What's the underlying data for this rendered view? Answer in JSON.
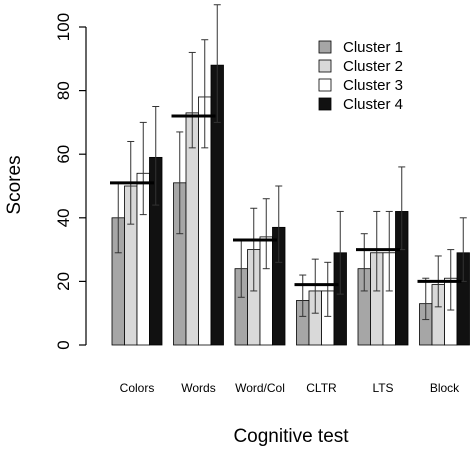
{
  "chart_data": {
    "type": "bar",
    "title": "",
    "xlabel": "Cognitive test",
    "ylabel": "Scores",
    "ylim": [
      0,
      100
    ],
    "yticks": [
      0,
      20,
      40,
      60,
      80,
      100
    ],
    "grid": false,
    "legend_position": "top-right",
    "categories": [
      "Colors",
      "Words",
      "Word/Col",
      "CLTR",
      "LTS",
      "Block"
    ],
    "reference_values": [
      51,
      72,
      33,
      19,
      30,
      20
    ],
    "series": [
      {
        "name": "Cluster 1",
        "color": "#a6a6a6",
        "values": [
          40,
          51,
          24,
          14,
          24,
          13
        ],
        "error_low": [
          29,
          35,
          15,
          9,
          17,
          8
        ],
        "error_high": [
          51,
          67,
          33,
          22,
          35,
          21
        ]
      },
      {
        "name": "Cluster 2",
        "color": "#d9d9d9",
        "values": [
          50,
          73,
          30,
          17,
          29,
          19
        ],
        "error_low": [
          38,
          62,
          17,
          10,
          17,
          12
        ],
        "error_high": [
          64,
          92,
          43,
          27,
          42,
          28
        ]
      },
      {
        "name": "Cluster 3",
        "color": "#ffffff",
        "values": [
          54,
          78,
          34,
          17,
          29,
          21
        ],
        "error_low": [
          41,
          62,
          24,
          9,
          17,
          11
        ],
        "error_high": [
          70,
          96,
          46,
          26,
          42,
          30
        ]
      },
      {
        "name": "Cluster 4",
        "color": "#111111",
        "values": [
          59,
          88,
          37,
          29,
          42,
          29
        ],
        "error_low": [
          44,
          70,
          26,
          16,
          30,
          20
        ],
        "error_high": [
          75,
          107,
          50,
          42,
          56,
          40
        ]
      }
    ]
  }
}
